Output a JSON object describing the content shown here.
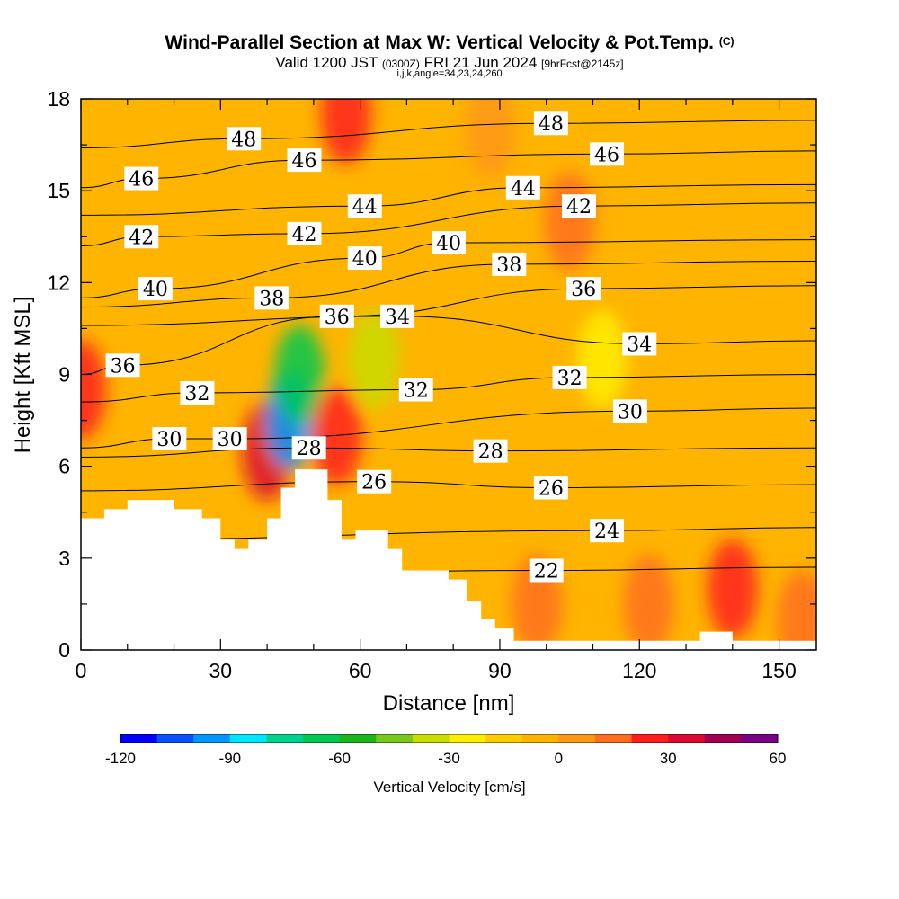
{
  "title": {
    "main": "Wind-Parallel Section at Max W: Vertical Velocity & Pot.Temp.",
    "main_sup": "(C)",
    "valid_prefix": "Valid 1200 JST",
    "valid_utc": "(0300Z)",
    "valid_date": "FRI 21 Jun 2024",
    "forecast": "[9hrFcst@2145z]",
    "params": "i,j,k,angle=34,23,24,260"
  },
  "chart_data": {
    "type": "heatmap",
    "xlabel": "Distance [nm]",
    "ylabel": "Height [Kft MSL]",
    "xlim": [
      0,
      158
    ],
    "ylim": [
      0,
      18
    ],
    "xticks": [
      0,
      30,
      60,
      90,
      120,
      150
    ],
    "yticks": [
      0,
      3,
      6,
      9,
      12,
      15,
      18
    ],
    "colorbar": {
      "label": "Vertical Velocity [cm/s]",
      "min": -120,
      "max": 60,
      "step": 10,
      "tick_labels": [
        "-120",
        "-90",
        "-60",
        "-30",
        "0",
        "30",
        "60"
      ],
      "colors": [
        "#0000ff",
        "#0a50ff",
        "#0096ff",
        "#00e6ff",
        "#00d28c",
        "#00c850",
        "#1eb41e",
        "#78c81e",
        "#c8dc00",
        "#ffee00",
        "#ffcc00",
        "#ffb400",
        "#ff9614",
        "#ff6e1e",
        "#ff1e1e",
        "#dc0a32",
        "#a00050",
        "#780082"
      ]
    },
    "terrain_profile": [
      [
        0,
        4.3
      ],
      [
        5,
        4.3
      ],
      [
        5,
        4.6
      ],
      [
        10,
        4.6
      ],
      [
        10,
        4.9
      ],
      [
        20,
        4.9
      ],
      [
        20,
        4.6
      ],
      [
        26,
        4.6
      ],
      [
        26,
        4.3
      ],
      [
        30,
        4.3
      ],
      [
        30,
        3.6
      ],
      [
        33,
        3.6
      ],
      [
        33,
        3.3
      ],
      [
        36,
        3.3
      ],
      [
        36,
        3.6
      ],
      [
        40,
        3.6
      ],
      [
        40,
        4.3
      ],
      [
        43,
        4.3
      ],
      [
        43,
        5.3
      ],
      [
        46,
        5.3
      ],
      [
        46,
        5.9
      ],
      [
        53,
        5.9
      ],
      [
        53,
        4.9
      ],
      [
        56,
        4.9
      ],
      [
        56,
        3.6
      ],
      [
        59,
        3.6
      ],
      [
        59,
        3.9
      ],
      [
        66,
        3.9
      ],
      [
        66,
        3.3
      ],
      [
        69,
        3.3
      ],
      [
        69,
        2.6
      ],
      [
        79,
        2.6
      ],
      [
        79,
        2.3
      ],
      [
        83,
        2.3
      ],
      [
        83,
        1.6
      ],
      [
        86,
        1.6
      ],
      [
        86,
        1.0
      ],
      [
        89,
        1.0
      ],
      [
        89,
        0.7
      ],
      [
        93,
        0.7
      ],
      [
        93,
        0.3
      ],
      [
        133,
        0.3
      ],
      [
        133,
        0.6
      ],
      [
        140,
        0.6
      ],
      [
        140,
        0.3
      ],
      [
        158,
        0.3
      ],
      [
        158,
        0
      ]
    ],
    "vertical_velocity_features": [
      {
        "x": 40,
        "y": 6.5,
        "value": 35
      },
      {
        "x": 45,
        "y": 7.5,
        "value": -100
      },
      {
        "x": 47,
        "y": 9,
        "value": -65
      },
      {
        "x": 55,
        "y": 7,
        "value": 25
      },
      {
        "x": 0,
        "y": 8.5,
        "value": 20
      },
      {
        "x": 57,
        "y": 17.5,
        "value": 25
      },
      {
        "x": 63,
        "y": 9.5,
        "value": -40
      },
      {
        "x": 105,
        "y": 14,
        "value": 12
      },
      {
        "x": 98,
        "y": 1.5,
        "value": 10
      },
      {
        "x": 122,
        "y": 1.5,
        "value": 15
      },
      {
        "x": 140,
        "y": 2,
        "value": 22
      },
      {
        "x": 155,
        "y": 1,
        "value": 15
      },
      {
        "x": 112,
        "y": 9.5,
        "value": -25
      },
      {
        "x": 88,
        "y": 17,
        "value": 2
      }
    ],
    "theta_contours": [
      {
        "label": "22",
        "x": 100,
        "y": 2.6
      },
      {
        "label": "24",
        "x": 113,
        "y": 3.9
      },
      {
        "label": "26",
        "x": 63,
        "y": 5.5
      },
      {
        "label": "26",
        "x": 101,
        "y": 5.3
      },
      {
        "label": "28",
        "x": 49,
        "y": 6.6
      },
      {
        "label": "28",
        "x": 88,
        "y": 6.5
      },
      {
        "label": "30",
        "x": 19,
        "y": 6.9
      },
      {
        "label": "30",
        "x": 32,
        "y": 6.9
      },
      {
        "label": "30",
        "x": 118,
        "y": 7.8
      },
      {
        "label": "32",
        "x": 25,
        "y": 8.4
      },
      {
        "label": "32",
        "x": 72,
        "y": 8.5
      },
      {
        "label": "32",
        "x": 105,
        "y": 8.9
      },
      {
        "label": "34",
        "x": 68,
        "y": 10.9
      },
      {
        "label": "34",
        "x": 120,
        "y": 10.0
      },
      {
        "label": "36",
        "x": 9,
        "y": 9.3
      },
      {
        "label": "36",
        "x": 55,
        "y": 10.9
      },
      {
        "label": "36",
        "x": 108,
        "y": 11.8
      },
      {
        "label": "38",
        "x": 41,
        "y": 11.5
      },
      {
        "label": "38",
        "x": 92,
        "y": 12.6
      },
      {
        "label": "40",
        "x": 16,
        "y": 11.8
      },
      {
        "label": "40",
        "x": 61,
        "y": 12.8
      },
      {
        "label": "40",
        "x": 79,
        "y": 13.3
      },
      {
        "label": "42",
        "x": 13,
        "y": 13.5
      },
      {
        "label": "42",
        "x": 48,
        "y": 13.6
      },
      {
        "label": "42",
        "x": 107,
        "y": 14.5
      },
      {
        "label": "44",
        "x": 61,
        "y": 14.5
      },
      {
        "label": "44",
        "x": 95,
        "y": 15.1
      },
      {
        "label": "46",
        "x": 13,
        "y": 15.4
      },
      {
        "label": "46",
        "x": 48,
        "y": 16.0
      },
      {
        "label": "46",
        "x": 113,
        "y": 16.2
      },
      {
        "label": "48",
        "x": 35,
        "y": 16.7
      },
      {
        "label": "48",
        "x": 101,
        "y": 17.2
      }
    ]
  }
}
